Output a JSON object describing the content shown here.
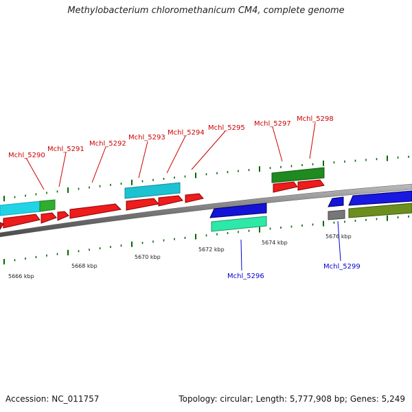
{
  "title": "Methylobacterium chloromethanicum CM4, complete genome",
  "footer": {
    "accession": "Accession: NC_011757",
    "summary": "Topology: circular; Length: 5,777,908 bp; Genes: 5,249"
  },
  "colors": {
    "top_label": "#cc0000",
    "bottom_label": "#0000cc",
    "tick": "#006600",
    "backbone": "#888888"
  },
  "scale_labels": [
    "5666 kbp",
    "5668 kbp",
    "5670 kbp",
    "5672 kbp",
    "5674 kbp",
    "5676 kbp"
  ],
  "gene_labels_top": [
    "Mchl_5290",
    "Mchl_5291",
    "Mchl_5292",
    "Mchl_5293",
    "Mchl_5294",
    "Mchl_5295",
    "Mchl_5297",
    "Mchl_5298"
  ],
  "gene_labels_bottom": [
    "Mchl_5296",
    "Mchl_5299"
  ]
}
